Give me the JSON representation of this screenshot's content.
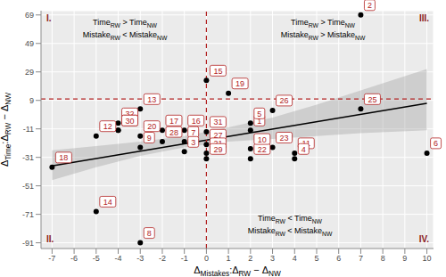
{
  "chart_data": {
    "type": "scatter",
    "xlabel": [
      {
        "t": "Δ"
      },
      {
        "t": "Mistakes",
        "sub": true
      },
      {
        "t": ":Δ"
      },
      {
        "t": "RW",
        "sub": true
      },
      {
        "t": " − Δ"
      },
      {
        "t": "NW",
        "sub": true
      }
    ],
    "ylabel": [
      {
        "t": "Δ"
      },
      {
        "t": "Time",
        "sub": true
      },
      {
        "t": ":Δ"
      },
      {
        "t": "RW",
        "sub": true
      },
      {
        "t": " − Δ"
      },
      {
        "t": "NW",
        "sub": true
      }
    ],
    "xlim": [
      -7.5,
      10.3
    ],
    "ylim": [
      -95,
      72
    ],
    "xticks": [
      -7,
      -6,
      -5,
      -4,
      -3,
      -2,
      -1,
      0,
      1,
      2,
      3,
      4,
      5,
      6,
      7,
      8,
      9,
      10
    ],
    "yticks": [
      -91,
      -71,
      -51,
      -31,
      -11,
      9,
      29,
      49,
      69
    ],
    "grid": true,
    "series": [
      {
        "color": "#000000",
        "marker": "circle",
        "labels": [
          "2",
          "15",
          "19",
          "26",
          "25",
          "13",
          "32",
          "24",
          "17",
          "16",
          "31",
          "1",
          "5",
          "12",
          "30",
          "20",
          "28",
          "7",
          "27",
          "9",
          "3",
          "21",
          "29",
          "22",
          "10",
          "23",
          "11",
          "4",
          "6",
          "18",
          "14",
          "8"
        ],
        "x": [
          7,
          0,
          1,
          3,
          7,
          -3,
          -4,
          -4,
          -2,
          -1,
          0,
          2,
          2,
          -5,
          -4,
          -3,
          -2,
          -1,
          0,
          -3,
          -1,
          0,
          0,
          2,
          2,
          3,
          4,
          4,
          10,
          -7,
          -5,
          -3
        ],
        "y": [
          69,
          23,
          14,
          2,
          3,
          3,
          -7,
          -12,
          -12,
          -12,
          -13,
          -12,
          -7,
          -16,
          -12,
          -16,
          -20,
          -20,
          -22,
          -24,
          -27,
          -28,
          -32,
          -32,
          -25,
          -24,
          -28,
          -32,
          -28,
          -38,
          -69,
          -91
        ]
      }
    ],
    "fit": {
      "x": [
        -7,
        10
      ],
      "y": [
        -37,
        7
      ],
      "color": "#000000"
    },
    "confidence_band": {
      "x": [
        -7,
        -5,
        -3,
        -1,
        0,
        1,
        3,
        5,
        7,
        10
      ],
      "lower": [
        -47,
        -38,
        -30,
        -24,
        -22,
        -20,
        -18,
        -16,
        -14,
        -12
      ],
      "upper": [
        -26,
        -23,
        -20,
        -16,
        -13,
        -10,
        -3,
        6,
        16,
        31
      ],
      "color": "#999999"
    },
    "reference_lines": {
      "x": 0,
      "y": 10,
      "color": "#b22222",
      "line_style": "dashed"
    },
    "quadrant_labels": [
      "I.",
      "II.",
      "III.",
      "IV."
    ],
    "annotations": [
      [
        [
          {
            "t": "Time"
          },
          {
            "t": "RW",
            "sub": true
          },
          {
            "t": " > Time"
          },
          {
            "t": "NW",
            "sub": true
          }
        ],
        [
          {
            "t": "Mistake"
          },
          {
            "t": "RW",
            "sub": true
          },
          {
            "t": " < Mistake"
          },
          {
            "t": "NW",
            "sub": true
          }
        ]
      ],
      [
        [
          {
            "t": "Time"
          },
          {
            "t": "RW",
            "sub": true
          },
          {
            "t": " > Time"
          },
          {
            "t": "NW",
            "sub": true
          }
        ],
        [
          {
            "t": "Mistake"
          },
          {
            "t": "RW",
            "sub": true
          },
          {
            "t": " > Mistake"
          },
          {
            "t": "NW",
            "sub": true
          }
        ]
      ],
      [
        [
          {
            "t": "Time"
          },
          {
            "t": "RW",
            "sub": true
          },
          {
            "t": " < Time"
          },
          {
            "t": "NW",
            "sub": true
          }
        ],
        [
          {
            "t": "Mistake"
          },
          {
            "t": "RW",
            "sub": true
          },
          {
            "t": " < Mistake"
          },
          {
            "t": "NW",
            "sub": true
          }
        ]
      ]
    ],
    "label_color": "#b22222"
  }
}
